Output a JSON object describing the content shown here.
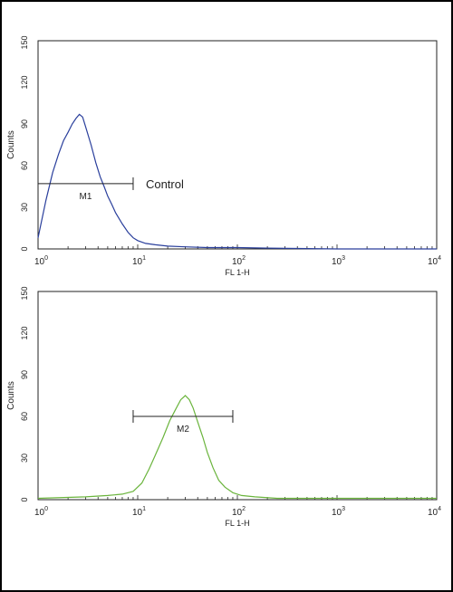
{
  "chart_data": [
    {
      "type": "line",
      "xscale": "log",
      "xlim": [
        1,
        10000
      ],
      "ylim": [
        0,
        150
      ],
      "xlabel": "FL 1-H",
      "ylabel": "Counts",
      "yticks": [
        "0",
        "30",
        "60",
        "90",
        "120",
        "150"
      ],
      "xticks": [
        {
          "base": "10",
          "exp": "0"
        },
        {
          "base": "10",
          "exp": "1"
        },
        {
          "base": "10",
          "exp": "2"
        },
        {
          "base": "10",
          "exp": "3"
        },
        {
          "base": "10",
          "exp": "4"
        }
      ],
      "color": "#2a3f9c",
      "series": [
        {
          "x": [
            1.0,
            1.2,
            1.4,
            1.6,
            1.8,
            2.0,
            2.2,
            2.4,
            2.6,
            2.8,
            3.0,
            3.4,
            3.8,
            4.2,
            4.6,
            5.0,
            5.5,
            6.0,
            7.0,
            8.0,
            9.0,
            10,
            12,
            15,
            20,
            30,
            50,
            100,
            200,
            400,
            1000,
            10000
          ],
          "y": [
            8,
            35,
            55,
            68,
            78,
            84,
            90,
            94,
            97,
            95,
            88,
            75,
            62,
            52,
            45,
            38,
            32,
            26,
            18,
            12,
            8,
            6,
            4,
            3,
            2,
            1.5,
            1,
            1,
            0.6,
            0.3,
            0,
            0
          ]
        }
      ],
      "marker": {
        "label": "M1",
        "x_start": 1.0,
        "x_end": 9.0,
        "y": 47,
        "annotation": "Control"
      }
    },
    {
      "type": "line",
      "xscale": "log",
      "xlim": [
        1,
        10000
      ],
      "ylim": [
        0,
        150
      ],
      "xlabel": "FL 1-H",
      "ylabel": "Counts",
      "yticks": [
        "0",
        "30",
        "60",
        "90",
        "120",
        "150"
      ],
      "xticks": [
        {
          "base": "10",
          "exp": "0"
        },
        {
          "base": "10",
          "exp": "1"
        },
        {
          "base": "10",
          "exp": "2"
        },
        {
          "base": "10",
          "exp": "3"
        },
        {
          "base": "10",
          "exp": "4"
        }
      ],
      "color": "#6ab43c",
      "series": [
        {
          "x": [
            1.0,
            3,
            5,
            7,
            9,
            11,
            13,
            15,
            18,
            21,
            24,
            27,
            30,
            33,
            36,
            40,
            45,
            50,
            57,
            65,
            75,
            90,
            110,
            150,
            250,
            500,
            1000,
            10000
          ],
          "y": [
            1,
            2,
            3,
            4,
            6,
            12,
            22,
            32,
            45,
            57,
            65,
            72,
            75,
            72,
            66,
            56,
            45,
            34,
            23,
            14,
            9,
            5,
            3,
            2,
            1,
            1,
            1,
            1
          ]
        }
      ],
      "marker": {
        "label": "M2",
        "x_start": 9.0,
        "x_end": 90.0,
        "y": 60
      }
    }
  ]
}
